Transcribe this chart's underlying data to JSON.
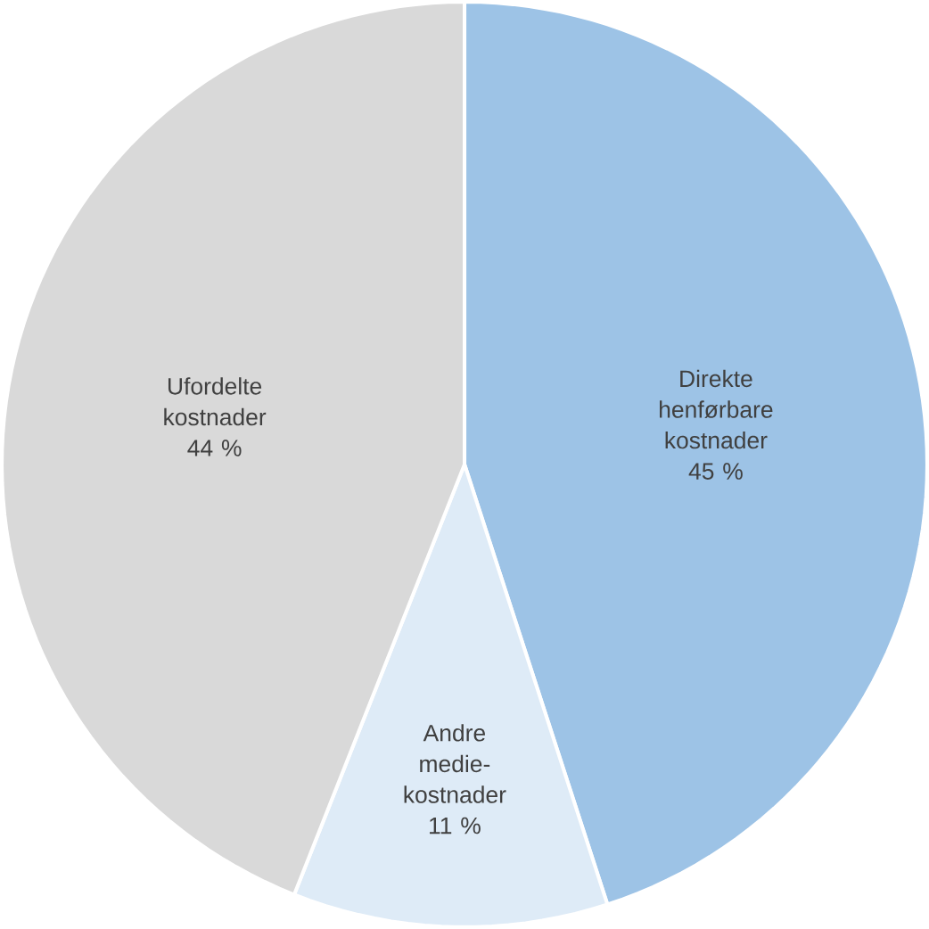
{
  "chart_data": {
    "type": "pie",
    "categories": [
      "Direkte henførbare kostnader",
      "Andre medie-kostnader",
      "Ufordelte kostnader"
    ],
    "values": [
      45,
      11,
      44
    ],
    "colors": [
      "#9dc3e6",
      "#deebf7",
      "#d9d9d9"
    ],
    "value_labels": [
      "45 %",
      "11 %",
      "44 %"
    ]
  }
}
